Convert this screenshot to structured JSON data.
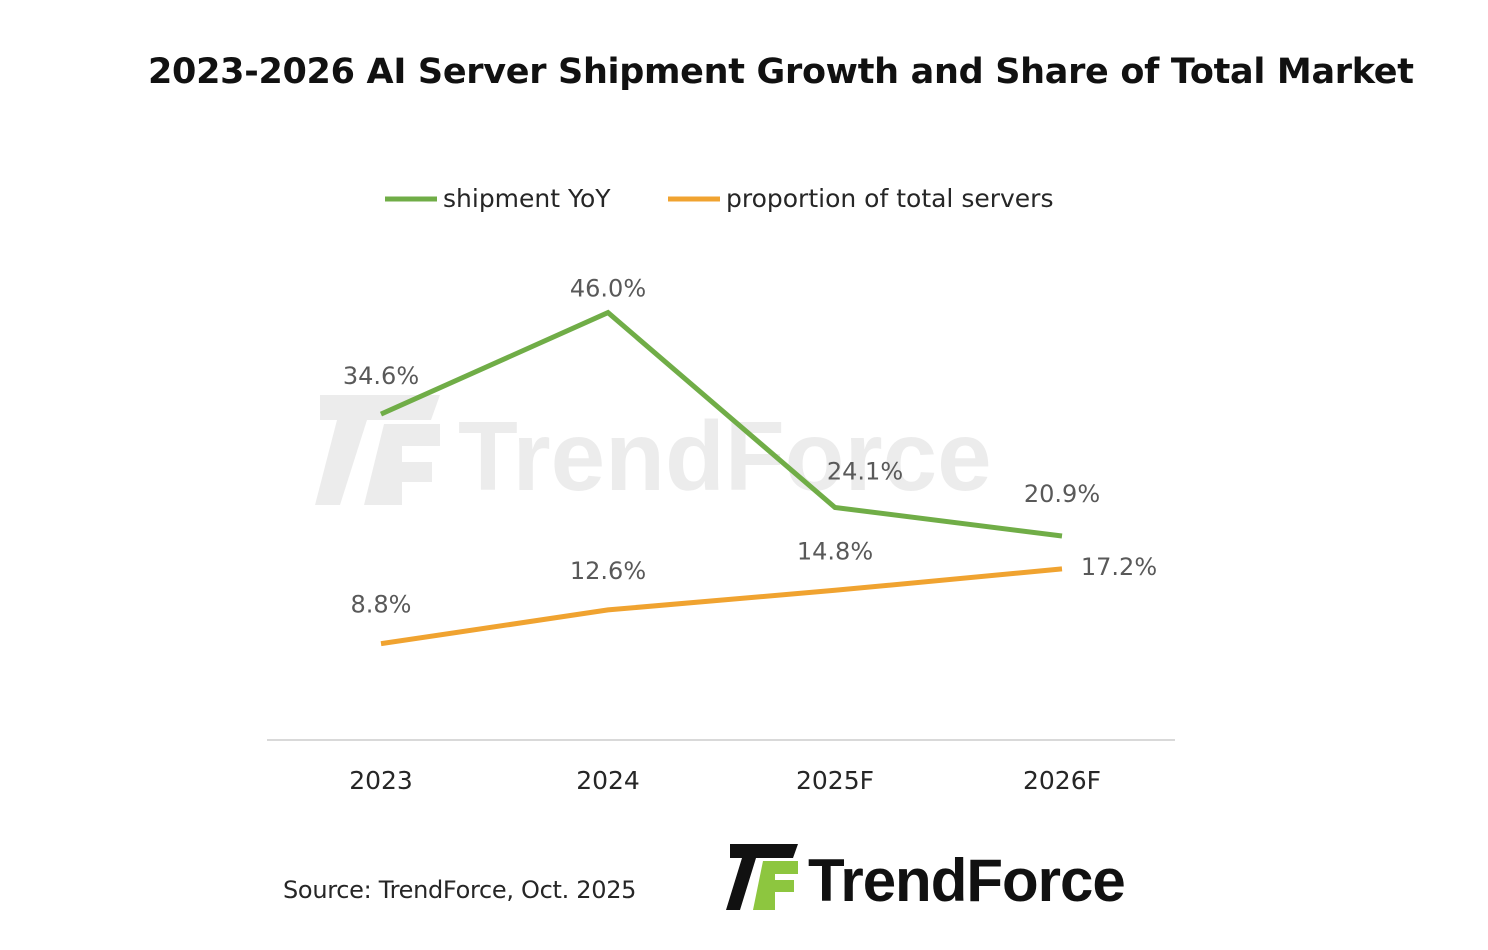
{
  "chart_data": {
    "type": "line",
    "title": "2023-2026 AI Server Shipment Growth and Share of Total Market",
    "categories": [
      "2023",
      "2024",
      "2025F",
      "2026F"
    ],
    "series": [
      {
        "name": "shipment YoY",
        "color": "#70AD47",
        "values": [
          34.6,
          46.0,
          24.1,
          20.9
        ],
        "labels": [
          "34.6%",
          "46.0%",
          "24.1%",
          "20.9%"
        ]
      },
      {
        "name": "proportion of total servers",
        "color": "#F0A330",
        "values": [
          8.8,
          12.6,
          14.8,
          17.2
        ],
        "labels": [
          "8.8%",
          "12.6%",
          "14.8%",
          "17.2%"
        ]
      }
    ],
    "ylim": [
      0,
      50
    ],
    "xlabel": "",
    "ylabel": "",
    "grid": false,
    "legend_position": "top"
  },
  "source": "Source: TrendForce, Oct. 2025",
  "brand": {
    "name": "TrendForce",
    "mark_color_primary": "#111111",
    "mark_color_accent": "#8DC63F"
  }
}
